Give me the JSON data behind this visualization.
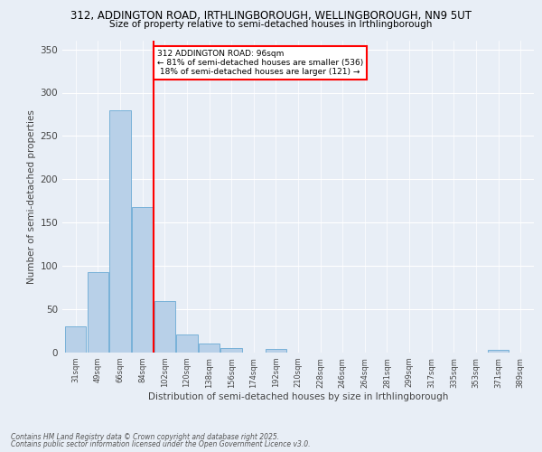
{
  "title_line1": "312, ADDINGTON ROAD, IRTHLINGBOROUGH, WELLINGBOROUGH, NN9 5UT",
  "title_line2": "Size of property relative to semi-detached houses in Irthlingborough",
  "xlabel": "Distribution of semi-detached houses by size in Irthlingborough",
  "ylabel": "Number of semi-detached properties",
  "categories": [
    "31sqm",
    "49sqm",
    "66sqm",
    "84sqm",
    "102sqm",
    "120sqm",
    "138sqm",
    "156sqm",
    "174sqm",
    "192sqm",
    "210sqm",
    "228sqm",
    "246sqm",
    "264sqm",
    "281sqm",
    "299sqm",
    "317sqm",
    "335sqm",
    "353sqm",
    "371sqm",
    "389sqm"
  ],
  "values": [
    30,
    93,
    280,
    168,
    60,
    21,
    10,
    5,
    0,
    4,
    0,
    0,
    0,
    0,
    0,
    0,
    0,
    0,
    0,
    3,
    0
  ],
  "bar_color": "#b8d0e8",
  "bar_edge_color": "#6aaad4",
  "property_label": "312 ADDINGTON ROAD: 96sqm",
  "pct_smaller": 81,
  "count_smaller": 536,
  "pct_larger": 18,
  "count_larger": 121,
  "vline_x_idx": 3.5,
  "ylim": [
    0,
    360
  ],
  "yticks": [
    0,
    50,
    100,
    150,
    200,
    250,
    300,
    350
  ],
  "footer_line1": "Contains HM Land Registry data © Crown copyright and database right 2025.",
  "footer_line2": "Contains public sector information licensed under the Open Government Licence v3.0.",
  "bg_color": "#e8eef6",
  "fig_color": "#e8eef6"
}
